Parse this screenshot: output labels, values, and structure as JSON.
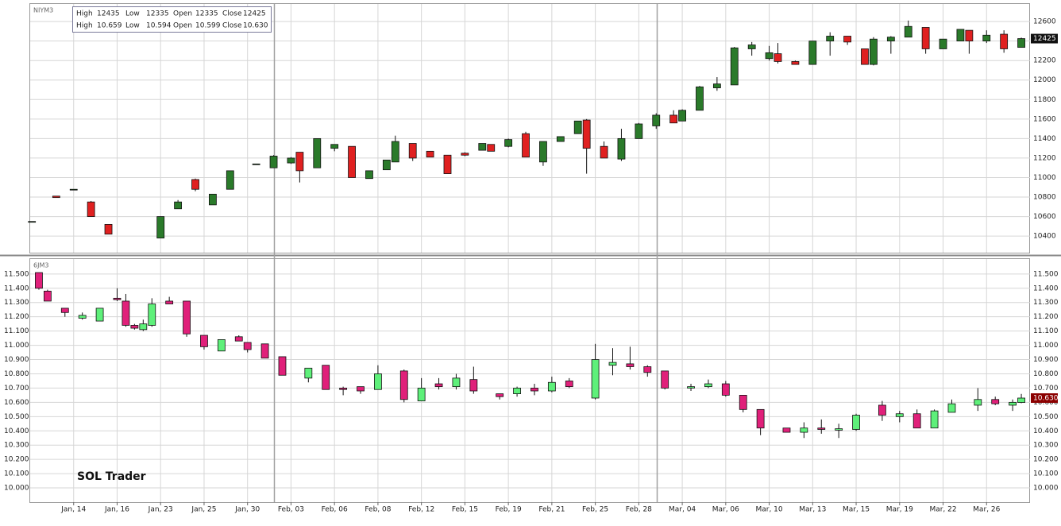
{
  "info_box": {
    "rows": [
      [
        "High",
        "12435",
        "Low",
        "12335",
        "Open",
        "12335",
        "Close",
        "12425"
      ],
      [
        "High",
        "10.659",
        "Low",
        "10.594",
        "Open",
        "10.599",
        "Close",
        "10.630"
      ]
    ]
  },
  "watermark": "SOL Trader",
  "chart_data": [
    {
      "type": "candlestick",
      "title": "NIYM3",
      "up_color": "#2a7a2a",
      "down_color": "#e02020",
      "left_labels": false,
      "xlim": [
        0,
        57.5
      ],
      "ylim": [
        10230,
        12780
      ],
      "yticks": [
        10400,
        10600,
        10800,
        11000,
        11200,
        11400,
        11600,
        11800,
        12000,
        12200,
        12400,
        12600
      ],
      "last_price": 12425,
      "last_color": "#111111",
      "x": [
        0.1,
        1.5,
        2.5,
        3.5,
        4.5,
        7.5,
        8.5,
        9.5,
        10.5,
        11.5,
        13,
        14,
        15,
        15.5,
        16.5,
        17.5,
        18.5,
        19.5,
        20.5,
        21,
        22,
        23,
        24,
        25,
        26,
        26.5,
        27.5,
        28.5,
        29.5,
        30.5,
        31.5,
        32,
        33,
        34,
        35,
        36,
        37,
        37.5,
        38.5,
        39.5,
        40.5,
        41.5,
        42.5,
        43,
        44,
        45,
        46,
        47,
        48,
        48.5,
        49.5,
        50.5,
        51.5,
        52.5,
        53.5,
        54,
        55,
        56,
        57
      ],
      "open": [
        10550,
        10810,
        10880,
        10750,
        10520,
        10380,
        10680,
        10980,
        10720,
        10880,
        11140,
        11100,
        11150,
        11260,
        11100,
        11300,
        11320,
        10990,
        11080,
        11160,
        11350,
        11270,
        11230,
        11250,
        11280,
        11340,
        11320,
        11450,
        11160,
        11370,
        11450,
        11590,
        11320,
        11190,
        11400,
        11530,
        11640,
        11580,
        11690,
        11920,
        11950,
        12320,
        12220,
        12270,
        12190,
        12160,
        12400,
        12450,
        12320,
        12160,
        12400,
        12440,
        12540,
        12320,
        12400,
        12510,
        12400,
        12470,
        12335
      ],
      "high": [
        10550,
        10810,
        10880,
        10760,
        10520,
        10600,
        10770,
        10990,
        10830,
        11070,
        11140,
        11230,
        11210,
        11260,
        11400,
        11340,
        11320,
        11070,
        11180,
        11430,
        11350,
        11270,
        11230,
        11260,
        11350,
        11340,
        11400,
        11470,
        11370,
        11420,
        11580,
        11600,
        11370,
        11500,
        11560,
        11660,
        11690,
        11700,
        11940,
        12030,
        12340,
        12390,
        12350,
        12380,
        12200,
        12400,
        12490,
        12450,
        12320,
        12440,
        12450,
        12610,
        12540,
        12420,
        12520,
        12510,
        12510,
        12510,
        12435
      ],
      "low": [
        10550,
        10795,
        10880,
        10600,
        10420,
        10380,
        10680,
        10860,
        10720,
        10880,
        11140,
        11100,
        11140,
        10950,
        11100,
        11270,
        11000,
        10990,
        11080,
        11160,
        11170,
        11210,
        11040,
        11220,
        11280,
        11270,
        11310,
        11210,
        11120,
        11370,
        11450,
        11040,
        11200,
        11170,
        11400,
        11500,
        11560,
        11580,
        11690,
        11890,
        11950,
        12250,
        12200,
        12170,
        12160,
        12160,
        12250,
        12360,
        12160,
        12150,
        12270,
        12440,
        12270,
        12320,
        12400,
        12270,
        12380,
        12280,
        12335
      ],
      "close": [
        10550,
        10795,
        10880,
        10600,
        10420,
        10600,
        10750,
        10880,
        10830,
        11070,
        11140,
        11220,
        11200,
        11070,
        11400,
        11340,
        11000,
        11070,
        11180,
        11370,
        11200,
        11210,
        11040,
        11230,
        11350,
        11270,
        11390,
        11210,
        11370,
        11420,
        11580,
        11300,
        11200,
        11400,
        11550,
        11640,
        11560,
        11690,
        11930,
        11960,
        12330,
        12360,
        12280,
        12190,
        12160,
        12400,
        12450,
        12390,
        12160,
        12420,
        12440,
        12550,
        12320,
        12420,
        12520,
        12400,
        12460,
        12320,
        12425
      ]
    },
    {
      "type": "candlestick",
      "title": "6JM3",
      "up_color": "#5ef07a",
      "down_color": "#e0207a",
      "left_labels": true,
      "xlim": [
        0,
        57.5
      ],
      "xticks": [
        {
          "value": 2.5,
          "label": "Jan, 14"
        },
        {
          "value": 5,
          "label": "Jan, 16"
        },
        {
          "value": 7.5,
          "label": "Jan, 23"
        },
        {
          "value": 10,
          "label": "Jan, 25"
        },
        {
          "value": 12.5,
          "label": "Jan, 30"
        },
        {
          "value": 15,
          "label": "Feb, 03"
        },
        {
          "value": 17.5,
          "label": "Feb, 06"
        },
        {
          "value": 20,
          "label": "Feb, 08"
        },
        {
          "value": 22.5,
          "label": "Feb, 12"
        },
        {
          "value": 25,
          "label": "Feb, 15"
        },
        {
          "value": 27.5,
          "label": "Feb, 19"
        },
        {
          "value": 30,
          "label": "Feb, 21"
        },
        {
          "value": 32.5,
          "label": "Feb, 25"
        },
        {
          "value": 35,
          "label": "Feb, 28"
        },
        {
          "value": 37.5,
          "label": "Mar, 04"
        },
        {
          "value": 40,
          "label": "Mar, 06"
        },
        {
          "value": 42.5,
          "label": "Mar, 10"
        },
        {
          "value": 45,
          "label": "Mar, 13"
        },
        {
          "value": 47.5,
          "label": "Mar, 15"
        },
        {
          "value": 50,
          "label": "Mar, 19"
        },
        {
          "value": 52.5,
          "label": "Mar, 22"
        },
        {
          "value": 55,
          "label": "Mar, 26"
        }
      ],
      "ylim": [
        9.9,
        11.605
      ],
      "yticks": [
        {
          "value": 10.0,
          "label": "10.000"
        },
        {
          "value": 10.1,
          "label": "10.100"
        },
        {
          "value": 10.2,
          "label": "10.200"
        },
        {
          "value": 10.3,
          "label": "10.300"
        },
        {
          "value": 10.4,
          "label": "10.400"
        },
        {
          "value": 10.5,
          "label": "10.500"
        },
        {
          "value": 10.6,
          "label": "10.600"
        },
        {
          "value": 10.7,
          "label": "10.700"
        },
        {
          "value": 10.8,
          "label": "10.800"
        },
        {
          "value": 10.9,
          "label": "10.900"
        },
        {
          "value": 11.0,
          "label": "11.000"
        },
        {
          "value": 11.1,
          "label": "11.100"
        },
        {
          "value": 11.2,
          "label": "11.200"
        },
        {
          "value": 11.3,
          "label": "11.300"
        },
        {
          "value": 11.4,
          "label": "11.400"
        },
        {
          "value": 11.5,
          "label": "11.500"
        }
      ],
      "last_price": {
        "value": 10.63,
        "label": "10.630"
      },
      "last_color": "#8b0000",
      "x": [
        0.5,
        1,
        2,
        3,
        4,
        5,
        5.5,
        6,
        6.5,
        7,
        8,
        9,
        10,
        11,
        12,
        12.5,
        13.5,
        14.5,
        16,
        17,
        18,
        19,
        20,
        21.5,
        22.5,
        23.5,
        24.5,
        25.5,
        27,
        28,
        29,
        30,
        31,
        32.5,
        33.5,
        34.5,
        35.5,
        36.5,
        38,
        39,
        40,
        41,
        42,
        43.5,
        44.5,
        45.5,
        46.5,
        47.5,
        49,
        50,
        51,
        52,
        53,
        54.5,
        55.5,
        56.5,
        57
      ],
      "open": [
        11.51,
        11.38,
        11.26,
        11.19,
        11.17,
        11.33,
        11.31,
        11.14,
        11.11,
        11.14,
        11.31,
        11.31,
        11.07,
        10.96,
        11.06,
        11.02,
        11.01,
        10.92,
        10.77,
        10.86,
        10.7,
        10.71,
        10.69,
        10.82,
        10.61,
        10.73,
        10.71,
        10.76,
        10.66,
        10.66,
        10.7,
        10.68,
        10.75,
        10.63,
        10.86,
        10.87,
        10.85,
        10.82,
        10.7,
        10.71,
        10.73,
        10.65,
        10.55,
        10.42,
        10.39,
        10.42,
        10.405,
        10.41,
        10.58,
        10.5,
        10.52,
        10.42,
        10.53,
        10.58,
        10.62,
        10.58,
        10.599
      ],
      "high": [
        11.51,
        11.39,
        11.26,
        11.23,
        11.26,
        11.4,
        11.36,
        11.15,
        11.18,
        11.33,
        11.34,
        11.31,
        11.07,
        11.04,
        11.07,
        11.02,
        11.01,
        10.92,
        10.84,
        10.86,
        10.71,
        10.71,
        10.86,
        10.83,
        10.77,
        10.77,
        10.8,
        10.85,
        10.66,
        10.71,
        10.73,
        10.78,
        10.77,
        11.01,
        10.98,
        10.99,
        10.86,
        10.82,
        10.73,
        10.76,
        10.75,
        10.65,
        10.55,
        10.42,
        10.46,
        10.48,
        10.45,
        10.52,
        10.61,
        10.54,
        10.55,
        10.55,
        10.62,
        10.7,
        10.64,
        10.62,
        10.659
      ],
      "low": [
        11.39,
        11.31,
        11.2,
        11.18,
        11.17,
        11.31,
        11.13,
        11.11,
        11.1,
        11.13,
        11.29,
        11.06,
        10.97,
        10.96,
        11.03,
        10.95,
        10.91,
        10.79,
        10.74,
        10.69,
        10.65,
        10.66,
        10.69,
        10.6,
        10.61,
        10.69,
        10.69,
        10.66,
        10.62,
        10.64,
        10.65,
        10.67,
        10.7,
        10.62,
        10.79,
        10.83,
        10.78,
        10.69,
        10.68,
        10.7,
        10.64,
        10.53,
        10.37,
        10.39,
        10.35,
        10.38,
        10.35,
        10.4,
        10.47,
        10.46,
        10.42,
        10.42,
        10.53,
        10.54,
        10.58,
        10.54,
        10.594
      ],
      "close": [
        11.4,
        11.31,
        11.23,
        11.21,
        11.26,
        11.32,
        11.14,
        11.12,
        11.15,
        11.29,
        11.29,
        11.08,
        10.99,
        11.04,
        11.03,
        10.97,
        10.91,
        10.79,
        10.84,
        10.69,
        10.69,
        10.68,
        10.8,
        10.62,
        10.7,
        10.71,
        10.77,
        10.68,
        10.64,
        10.7,
        10.68,
        10.74,
        10.71,
        10.9,
        10.88,
        10.85,
        10.81,
        10.7,
        10.71,
        10.73,
        10.65,
        10.55,
        10.42,
        10.39,
        10.42,
        10.41,
        10.415,
        10.51,
        10.51,
        10.52,
        10.42,
        10.54,
        10.59,
        10.62,
        10.59,
        10.6,
        10.63
      ]
    }
  ]
}
